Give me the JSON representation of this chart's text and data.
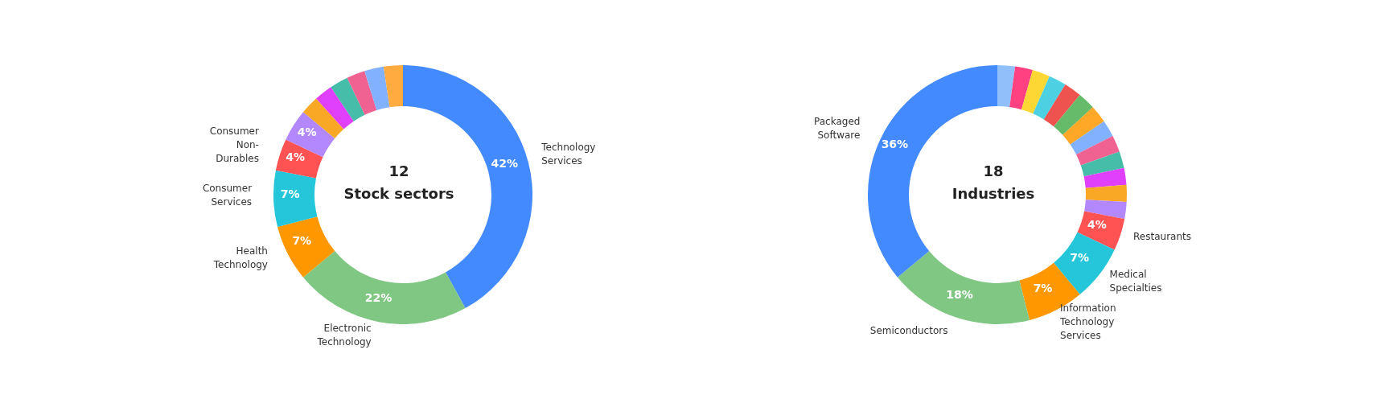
{
  "chart_data": [
    {
      "type": "donut",
      "title": "12",
      "subtitle": "Stock sectors",
      "categories": [
        "Technology Services",
        "Electronic Technology",
        "Health Technology",
        "Consumer Services",
        "Consumer Non-Durables",
        null,
        null,
        null,
        null,
        null,
        null,
        null
      ],
      "values": [
        42,
        22,
        7,
        7,
        4,
        4,
        2.3,
        2.3,
        2.3,
        2.3,
        2.4,
        2.4
      ],
      "value_labels": [
        "42%",
        "22%",
        "7%",
        "7%",
        "4%",
        "4%",
        null,
        null,
        null,
        null,
        null,
        null
      ],
      "colors": [
        "#448aff",
        "#81c784",
        "#ff9800",
        "#26c6da",
        "#ff5252",
        "#b388ff",
        "#f9a825",
        "#e040fb",
        "#45bda8",
        "#f06292",
        "#82b1ff",
        "#ffab40"
      ],
      "legend": false
    },
    {
      "type": "donut",
      "title": "18",
      "subtitle": "Industries",
      "categories": [
        null,
        null,
        null,
        null,
        null,
        null,
        null,
        null,
        null,
        null,
        null,
        null,
        null,
        "Restaurants",
        "Medical Specialties",
        "Information Technology Services",
        "Semiconductors",
        "Packaged Software"
      ],
      "values": [
        2.2,
        2.2,
        2.2,
        2.2,
        2.2,
        2.2,
        2.2,
        2.1,
        2.1,
        2.1,
        2.1,
        2.1,
        2.1,
        4,
        7,
        7,
        18,
        36
      ],
      "value_labels": [
        null,
        null,
        null,
        null,
        null,
        null,
        null,
        null,
        null,
        null,
        null,
        null,
        null,
        "4%",
        "7%",
        "7%",
        "18%",
        "36%"
      ],
      "colors": [
        "#90bff9",
        "#ff4081",
        "#fdd835",
        "#4dd0e1",
        "#ef5350",
        "#66bb6a",
        "#ffa726",
        "#82b1ff",
        "#f06292",
        "#45bda8",
        "#e040fb",
        "#f9a825",
        "#b388ff",
        "#ff5252",
        "#26c6da",
        "#ff9800",
        "#81c784",
        "#448aff"
      ],
      "legend": false
    }
  ]
}
